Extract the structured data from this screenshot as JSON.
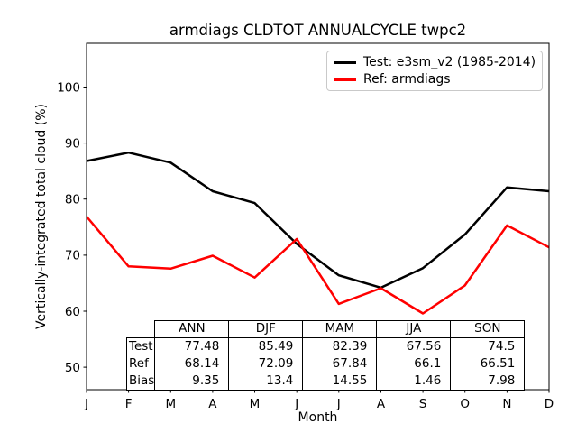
{
  "chart_data": {
    "type": "line",
    "title": "armdiags CLDTOT ANNUALCYCLE twpc2",
    "xlabel": "Month",
    "ylabel": "Vertically-integrated total cloud (%)",
    "x_tick_labels": [
      "J",
      "F",
      "M",
      "A",
      "M",
      "J",
      "J",
      "A",
      "S",
      "O",
      "N",
      "D"
    ],
    "y_ticks": [
      50,
      60,
      70,
      80,
      90,
      100
    ],
    "xlim": [
      0,
      11
    ],
    "ylim": [
      46,
      107.8
    ],
    "grid": false,
    "legend_position": "upper right",
    "series": [
      {
        "name": "Test: e3sm_v2 (1985-2014)",
        "color": "#000000",
        "values": [
          86.8,
          88.3,
          86.5,
          81.4,
          79.3,
          72.0,
          66.4,
          64.2,
          67.7,
          73.7,
          82.1,
          81.4
        ]
      },
      {
        "name": "Ref: armdiags",
        "color": "#ff0000",
        "values": [
          76.9,
          68.0,
          67.6,
          69.9,
          66.0,
          72.9,
          61.3,
          64.1,
          59.6,
          64.6,
          75.3,
          71.4
        ]
      }
    ]
  },
  "stats_table": {
    "columns": [
      "ANN",
      "DJF",
      "MAM",
      "JJA",
      "SON"
    ],
    "rows": [
      {
        "label": "Test",
        "values": [
          "77.48",
          "85.49",
          "82.39",
          "67.56",
          "74.5"
        ]
      },
      {
        "label": "Ref",
        "values": [
          "68.14",
          "72.09",
          "67.84",
          "66.1",
          "66.51"
        ]
      },
      {
        "label": "Bias",
        "values": [
          "9.35",
          "13.4",
          "14.55",
          "1.46",
          "7.98"
        ]
      }
    ]
  }
}
